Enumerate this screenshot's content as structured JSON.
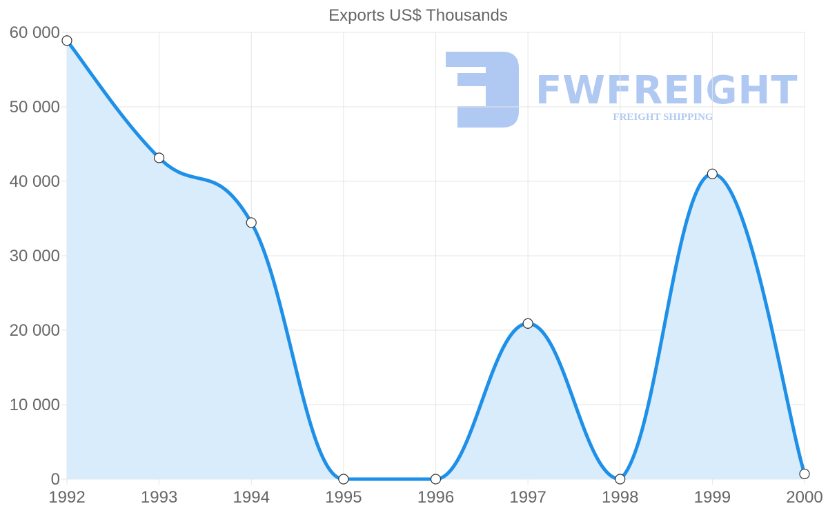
{
  "chart_data": {
    "type": "area",
    "title": "Exports US$ Thousands",
    "xlabel": "",
    "ylabel": "",
    "categories": [
      "1992",
      "1993",
      "1994",
      "1995",
      "1996",
      "1997",
      "1998",
      "1999",
      "2000"
    ],
    "series": [
      {
        "name": "Exports US$ Thousands",
        "values": [
          58900,
          43150,
          34450,
          0,
          0,
          20900,
          0,
          41000,
          700
        ],
        "color": "#1e90e8",
        "fill": "#d9ecfb"
      }
    ],
    "ylim": [
      0,
      60000
    ],
    "yticks": [
      0,
      10000,
      20000,
      30000,
      40000,
      50000,
      60000
    ],
    "ytick_labels": [
      "0",
      "10 000",
      "20 000",
      "30 000",
      "40 000",
      "50 000",
      "60 000"
    ],
    "grid": true,
    "legend": "none"
  },
  "watermark": {
    "brand": "FWFREIGHT",
    "tagline": "FREIGHT SHIPPING",
    "color": "#b0c9f2"
  }
}
